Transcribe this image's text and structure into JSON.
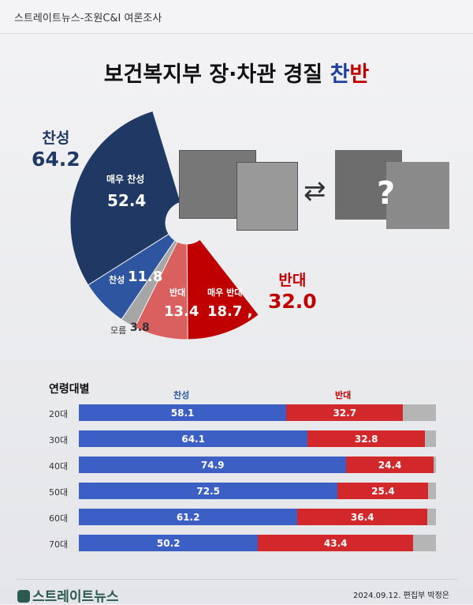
{
  "header": {
    "source": "스트레이트뉴스-조원C&I 여론조사"
  },
  "title": {
    "main": "보건복지부 장·차관 경질 ",
    "pro": "찬",
    "con": "반"
  },
  "colors": {
    "strong_pro": "#1f3864",
    "pro": "#2e56a0",
    "unknown": "#a6a6a6",
    "con": "#d9605f",
    "strong_con": "#c00000",
    "bar_pro": "#3b5fc4",
    "bar_con": "#d3282b",
    "bar_other": "#b5b5b5"
  },
  "chart_data": [
    {
      "type": "pie",
      "subtype": "partial-donut",
      "totals": {
        "pro_label": "찬성",
        "pro_value": "64.2",
        "con_label": "반대",
        "con_value": "32.0"
      },
      "slices": [
        {
          "label": "매우 찬성",
          "value": 52.4,
          "text": "52.4",
          "color": "#1f3864"
        },
        {
          "label": "찬성",
          "value": 11.8,
          "text": "11.8",
          "color": "#2e56a0"
        },
        {
          "label": "모름",
          "value": 3.8,
          "text": "3.8",
          "color": "#a6a6a6"
        },
        {
          "label": "반대",
          "value": 13.4,
          "text": "13.4",
          "color": "#d9605f"
        },
        {
          "label": "매우 반대",
          "value": 18.7,
          "text": "18.7 ,",
          "color": "#c00000"
        }
      ]
    },
    {
      "type": "bar",
      "subtype": "stacked-horizontal",
      "title": "연령대별",
      "legend": [
        "찬성",
        "반대"
      ],
      "categories": [
        "20대",
        "30대",
        "40대",
        "50대",
        "60대",
        "70대"
      ],
      "series": [
        {
          "name": "찬성",
          "values": [
            58.1,
            64.1,
            74.9,
            72.5,
            61.2,
            50.2
          ]
        },
        {
          "name": "반대",
          "values": [
            32.7,
            32.8,
            24.4,
            25.4,
            36.4,
            43.4
          ]
        }
      ],
      "xlim": [
        0,
        100
      ]
    }
  ],
  "footer": {
    "logo": "스트레이트뉴스",
    "credit": "2024.09.12. 편집부 박정은"
  },
  "icons": {
    "swap": "swap-arrows-icon",
    "unknown": "question-mark-icon"
  }
}
